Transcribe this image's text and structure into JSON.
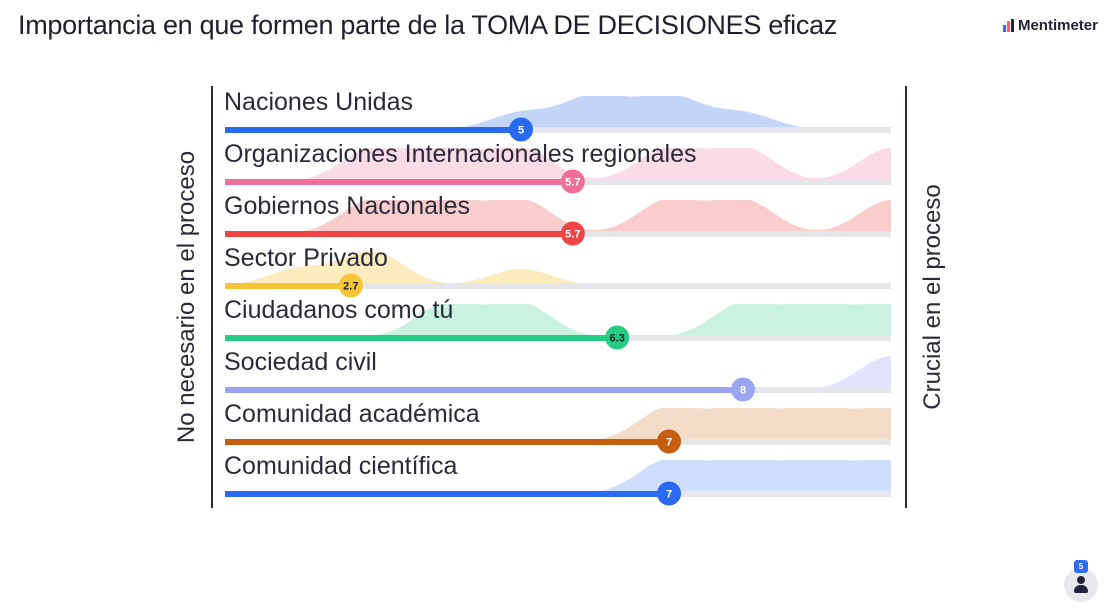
{
  "title": "Importancia en que formen parte de la TOMA DE DECISIONES eficaz",
  "brand": "Mentimeter",
  "participants_count": "5",
  "icons": {
    "logo": "mentimeter-logo-icon",
    "participants": "person-icon"
  },
  "chart_data": {
    "type": "scale",
    "title": "Importancia en que formen parte de la TOMA DE DECISIONES eficaz",
    "left_label": "No necesario en el proceso",
    "right_label": "Crucial en el proceso",
    "xlim": [
      1,
      10
    ],
    "items": [
      {
        "label": "Naciones Unidas",
        "average": 5,
        "display": "5",
        "color": "#2a6af0",
        "fill": "#b9cff8",
        "label_color": "#ffffff",
        "distribution": [
          0,
          0,
          0,
          0,
          1,
          2,
          2,
          1,
          0,
          0
        ]
      },
      {
        "label": "Organizaciones Internacionales regionales",
        "average": 5.7,
        "display": "5.7",
        "color": "#ef6f9a",
        "fill": "#fad5e1",
        "label_color": "#ffffff",
        "distribution": [
          0,
          0,
          1,
          1,
          1,
          0,
          1,
          1,
          0,
          1
        ]
      },
      {
        "label": "Gobiernos Nacionales",
        "average": 5.7,
        "display": "5.7",
        "color": "#f04545",
        "fill": "#f9c4c4",
        "label_color": "#ffffff",
        "distribution": [
          0,
          0,
          1,
          1,
          1,
          0,
          1,
          1,
          0,
          1
        ]
      },
      {
        "label": "Sector Privado",
        "average": 2.7,
        "display": "2.7",
        "color": "#f7c437",
        "fill": "#fbe7b2",
        "label_color": "#1f1f2e",
        "distribution": [
          0,
          1,
          2,
          0,
          1,
          0,
          0,
          0,
          0,
          0
        ]
      },
      {
        "label": "Ciudadanos como tú",
        "average": 6.3,
        "display": "6.3",
        "color": "#27cc84",
        "fill": "#bff0d8",
        "label_color": "#1f1f2e",
        "distribution": [
          0,
          0,
          0,
          1,
          1,
          0,
          0,
          1,
          1,
          1
        ]
      },
      {
        "label": "Sociedad civil",
        "average": 8,
        "display": "8",
        "color": "#9ba4ef",
        "fill": "#dcdff9",
        "label_color": "#ffffff",
        "distribution": [
          0,
          0,
          0,
          0,
          0,
          0,
          0,
          0,
          0,
          1
        ]
      },
      {
        "label": "Comunidad académica",
        "average": 7,
        "display": "7",
        "color": "#c65d0f",
        "fill": "#f0d5bd",
        "label_color": "#ffffff",
        "distribution": [
          0,
          0,
          0,
          0,
          0,
          0,
          1,
          1,
          1,
          1
        ]
      },
      {
        "label": "Comunidad científica",
        "average": 7,
        "display": "7",
        "color": "#2a6af0",
        "fill": "#c6d9fb",
        "label_color": "#ffffff",
        "distribution": [
          0,
          0,
          0,
          0,
          0,
          0,
          1,
          1,
          1,
          1
        ]
      }
    ]
  }
}
